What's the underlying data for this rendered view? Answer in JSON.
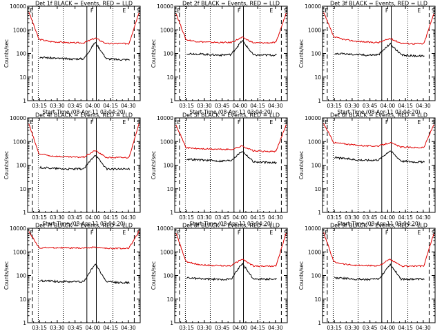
{
  "colors": {
    "events": "#000000",
    "lld": "#e00000",
    "axes": "#000000",
    "background": "#ffffff"
  },
  "shared": {
    "ylabel": "Counts/sec",
    "xlabel": "Start Time (08-Apr-11 03:04:20)",
    "x_tick_labels": [
      "03:15",
      "03:30",
      "03:45",
      "04:00",
      "04:15",
      "04:30"
    ],
    "y_tick_labels": [
      "1",
      "10",
      "100",
      "1000",
      "10000"
    ],
    "x_range_minutes": [
      -10,
      45
    ],
    "y_range": [
      1,
      10000
    ],
    "y_scale": "log",
    "corner_markers": [
      "E",
      "F",
      "E",
      "S"
    ]
  },
  "chart_data": [
    {
      "type": "line",
      "title": "Det 1f BLACK = Events, RED = LLD",
      "series": [
        {
          "values_events": [
            70,
            70,
            65,
            60,
            58,
            60,
            300,
            60,
            55,
            55,
            58
          ]
        },
        {
          "values_lld": [
            8000,
            400,
            320,
            300,
            280,
            280,
            450,
            260,
            260,
            260,
            8000
          ]
        }
      ]
    },
    {
      "type": "line",
      "title": "Det 2f BLACK = Events, RED = LLD",
      "series": [
        {
          "values_events": [
            100,
            100,
            95,
            90,
            85,
            90,
            350,
            85,
            85,
            85,
            85
          ]
        },
        {
          "values_lld": [
            7000,
            380,
            320,
            300,
            290,
            290,
            480,
            280,
            280,
            290,
            7000
          ]
        }
      ]
    },
    {
      "type": "line",
      "title": "Det 3f BLACK = Events, RED = LLD",
      "series": [
        {
          "values_events": [
            100,
            100,
            95,
            90,
            85,
            90,
            260,
            85,
            80,
            78,
            75
          ]
        },
        {
          "values_lld": [
            7000,
            500,
            380,
            330,
            300,
            290,
            430,
            270,
            260,
            255,
            7000
          ]
        }
      ]
    },
    {
      "type": "line",
      "title": "Det 4f BLACK = Events, RED = LLD",
      "series": [
        {
          "values_events": [
            80,
            80,
            75,
            70,
            68,
            70,
            280,
            70,
            68,
            68,
            70
          ]
        },
        {
          "values_lld": [
            8000,
            300,
            250,
            230,
            220,
            220,
            420,
            210,
            210,
            210,
            8000
          ]
        }
      ]
    },
    {
      "type": "line",
      "title": "Det 5f BLACK = Events, RED = LLD",
      "series": [
        {
          "values_events": [
            180,
            180,
            170,
            160,
            150,
            160,
            400,
            140,
            130,
            125,
            120
          ]
        },
        {
          "values_lld": [
            7000,
            550,
            500,
            480,
            470,
            460,
            650,
            400,
            380,
            380,
            7000
          ]
        }
      ]
    },
    {
      "type": "line",
      "title": "Det 6f BLACK = Events, RED = LLD",
      "series": [
        {
          "values_events": [
            220,
            210,
            190,
            170,
            160,
            170,
            420,
            150,
            140,
            135,
            130
          ]
        },
        {
          "values_lld": [
            7000,
            900,
            800,
            700,
            650,
            650,
            900,
            580,
            560,
            550,
            7000
          ]
        }
      ]
    },
    {
      "type": "line",
      "title": "Det 7f BLACK = Events, RED = LLD",
      "series": [
        {
          "values_events": [
            60,
            60,
            58,
            55,
            55,
            55,
            320,
            55,
            50,
            50,
            50
          ]
        },
        {
          "values_lld": [
            9000,
            1500,
            1500,
            1500,
            1450,
            1450,
            1600,
            1400,
            1400,
            1400,
            9000
          ]
        }
      ]
    },
    {
      "type": "line",
      "title": "Det 8f BLACK = Events, RED = LLD",
      "series": [
        {
          "values_events": [
            80,
            80,
            75,
            70,
            68,
            70,
            330,
            70,
            70,
            70,
            70
          ]
        },
        {
          "values_lld": [
            9000,
            380,
            300,
            270,
            260,
            260,
            500,
            250,
            250,
            250,
            9000
          ]
        }
      ]
    },
    {
      "type": "line",
      "title": "Det 9f BLACK = Events, RED = LLD",
      "series": [
        {
          "values_events": [
            80,
            80,
            75,
            70,
            68,
            70,
            300,
            70,
            70,
            70,
            70
          ]
        },
        {
          "values_lld": [
            9000,
            380,
            300,
            270,
            260,
            260,
            480,
            250,
            250,
            250,
            9000
          ]
        }
      ]
    }
  ]
}
